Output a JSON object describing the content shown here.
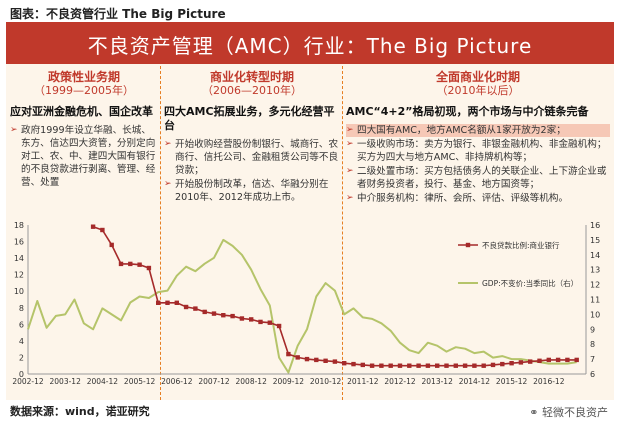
{
  "caption": "图表：不良资管行业 The Big Picture",
  "banner_title": "不良资产管理（AMC）行业：The Big Picture",
  "phases": [
    {
      "title": "政策性业务期",
      "years": "（1999—2005年）",
      "heading": "应对亚洲金融危机、国企改革",
      "bullets": [
        "政府1999年设立华融、长城、东方、信达四大资管，分别定向对工、农、中、建四大国有银行的不良贷款进行剥离、管理、经营、处置"
      ]
    },
    {
      "title": "商业化转型时期",
      "years": "（2006—2010年）",
      "heading": "四大AMC拓展业务，多元化经营平台",
      "bullets": [
        "开始收购经营股份制银行、城商行、农商行、信托公司、金融租赁公司等不良贷款；",
        "开始股份制改革，信达、华融分别在2010年、2012年成功上市。"
      ]
    },
    {
      "title": "全面商业化时期",
      "years": "（2010年以后）",
      "heading": "AMC“4+2”格局初现，两个市场与中介链条完备",
      "bullets": [
        "四大国有AMC，地方AMC名额从1家开放为2家；",
        "一级收购市场：卖方为银行、非银金融机构、非金融机构；买方为四大与地方AMC、非持牌机构等；",
        "二级处置市场：买方包括债务人的关联企业、上下游企业或者财务投资者，投行、基金、地方国资等；",
        "中介服务机构：律所、会所、评估、评级等机构。"
      ]
    }
  ],
  "source_text": "数据来源：wind，诺亚研究",
  "watermark_text": "轻微不良资产",
  "colors": {
    "banner": "#c0392b",
    "npl_series": "#a52a2a",
    "gdp_series": "#b5c46a"
  },
  "chart_data": {
    "type": "line",
    "x_ticks": [
      "2002-12",
      "2003-12",
      "2004-12",
      "2005-12",
      "2006-12",
      "2007-12",
      "2008-12",
      "2009-12",
      "2010-12",
      "2011-12",
      "2012-12",
      "2013-12",
      "2014-12",
      "2015-12",
      "2016-12"
    ],
    "ylim": [
      0,
      18
    ],
    "y_ticks": [
      0,
      2,
      4,
      6,
      8,
      10,
      12,
      14,
      16,
      18
    ],
    "y2lim": [
      6,
      16
    ],
    "y2_ticks": [
      6,
      7,
      8,
      9,
      10,
      11,
      12,
      13,
      14,
      15,
      16
    ],
    "grid": false,
    "legend_position": "right",
    "series": [
      {
        "name": "不良贷款比例:商业银行",
        "axis": "left",
        "marker": "square",
        "x": [
          2003.75,
          2004.0,
          2004.25,
          2004.5,
          2004.75,
          2005.0,
          2005.25,
          2005.5,
          2005.75,
          2006.0,
          2006.25,
          2006.5,
          2006.75,
          2007.0,
          2007.25,
          2007.5,
          2007.75,
          2008.0,
          2008.25,
          2008.5,
          2008.75,
          2009.0,
          2009.25,
          2009.5,
          2009.75,
          2010.0,
          2010.25,
          2010.5,
          2010.75,
          2011.0,
          2011.25,
          2011.5,
          2011.75,
          2012.0,
          2012.25,
          2012.5,
          2012.75,
          2013.0,
          2013.25,
          2013.5,
          2013.75,
          2014.0,
          2014.25,
          2014.5,
          2014.75,
          2015.0,
          2015.25,
          2015.5,
          2015.75,
          2016.0,
          2016.25,
          2016.5,
          2016.75
        ],
        "values": [
          17.8,
          17.4,
          15.6,
          13.3,
          13.3,
          13.2,
          12.8,
          8.6,
          8.6,
          8.6,
          8.1,
          7.9,
          7.5,
          7.3,
          7.1,
          7.0,
          6.7,
          6.6,
          6.3,
          6.2,
          5.8,
          2.4,
          2.0,
          1.8,
          1.7,
          1.6,
          1.5,
          1.3,
          1.2,
          1.1,
          1.0,
          1.0,
          1.0,
          1.0,
          1.0,
          1.0,
          1.0,
          1.0,
          1.0,
          1.0,
          1.0,
          1.0,
          1.0,
          1.1,
          1.2,
          1.3,
          1.4,
          1.5,
          1.6,
          1.7,
          1.7,
          1.7,
          1.7
        ]
      },
      {
        "name": "GDP:不变价:当季同比（右）",
        "axis": "right",
        "marker": "none",
        "x": [
          2002.0,
          2002.25,
          2002.5,
          2002.75,
          2003.0,
          2003.25,
          2003.5,
          2003.75,
          2004.0,
          2004.25,
          2004.5,
          2004.75,
          2005.0,
          2005.25,
          2005.5,
          2005.75,
          2006.0,
          2006.25,
          2006.5,
          2006.75,
          2007.0,
          2007.25,
          2007.5,
          2007.75,
          2008.0,
          2008.25,
          2008.5,
          2008.75,
          2009.0,
          2009.25,
          2009.5,
          2009.75,
          2010.0,
          2010.25,
          2010.5,
          2010.75,
          2011.0,
          2011.25,
          2011.5,
          2011.75,
          2012.0,
          2012.25,
          2012.5,
          2012.75,
          2013.0,
          2013.25,
          2013.5,
          2013.75,
          2014.0,
          2014.25,
          2014.5,
          2014.75,
          2015.0,
          2015.25,
          2015.5,
          2015.75,
          2016.0,
          2016.25,
          2016.5,
          2016.75
        ],
        "values": [
          9.0,
          10.9,
          9.1,
          9.9,
          10.0,
          11.0,
          9.4,
          9.0,
          10.4,
          10.0,
          9.6,
          10.8,
          11.2,
          11.1,
          11.5,
          11.6,
          12.6,
          13.2,
          12.9,
          13.4,
          13.8,
          15.0,
          14.6,
          14.0,
          13.0,
          11.7,
          10.6,
          7.1,
          6.1,
          7.9,
          9.0,
          11.2,
          12.1,
          11.6,
          10.0,
          10.4,
          9.8,
          9.7,
          9.4,
          8.9,
          8.1,
          7.6,
          7.4,
          8.1,
          7.9,
          7.5,
          7.8,
          7.7,
          7.4,
          7.5,
          7.1,
          7.2,
          7.0,
          7.0,
          6.9,
          6.8,
          6.7,
          6.7,
          6.7,
          6.8
        ]
      }
    ]
  }
}
